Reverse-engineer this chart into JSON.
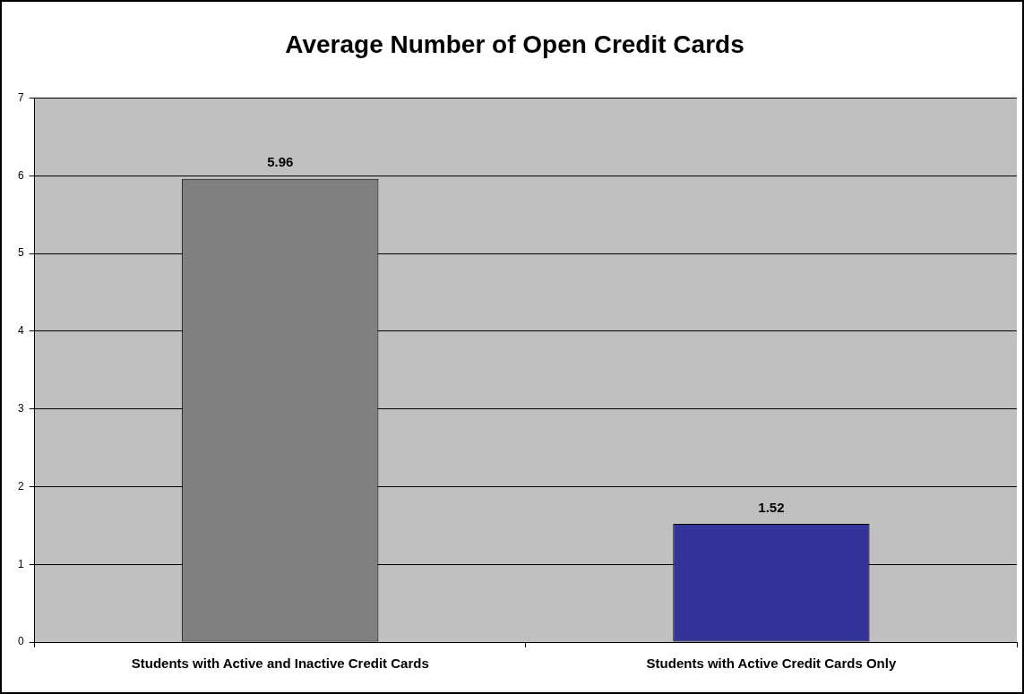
{
  "chart_data": {
    "type": "bar",
    "title": "Average Number of Open Credit Cards",
    "categories": [
      "Students with Active and Inactive Credit Cards",
      "Students with Active Credit Cards Only"
    ],
    "values": [
      5.96,
      1.52
    ],
    "colors": [
      "#808080",
      "#333399"
    ],
    "ylim": [
      0,
      7
    ],
    "yticks": [
      0,
      1,
      2,
      3,
      4,
      5,
      6,
      7
    ],
    "grid": "y",
    "legend": false,
    "data_labels": true
  }
}
